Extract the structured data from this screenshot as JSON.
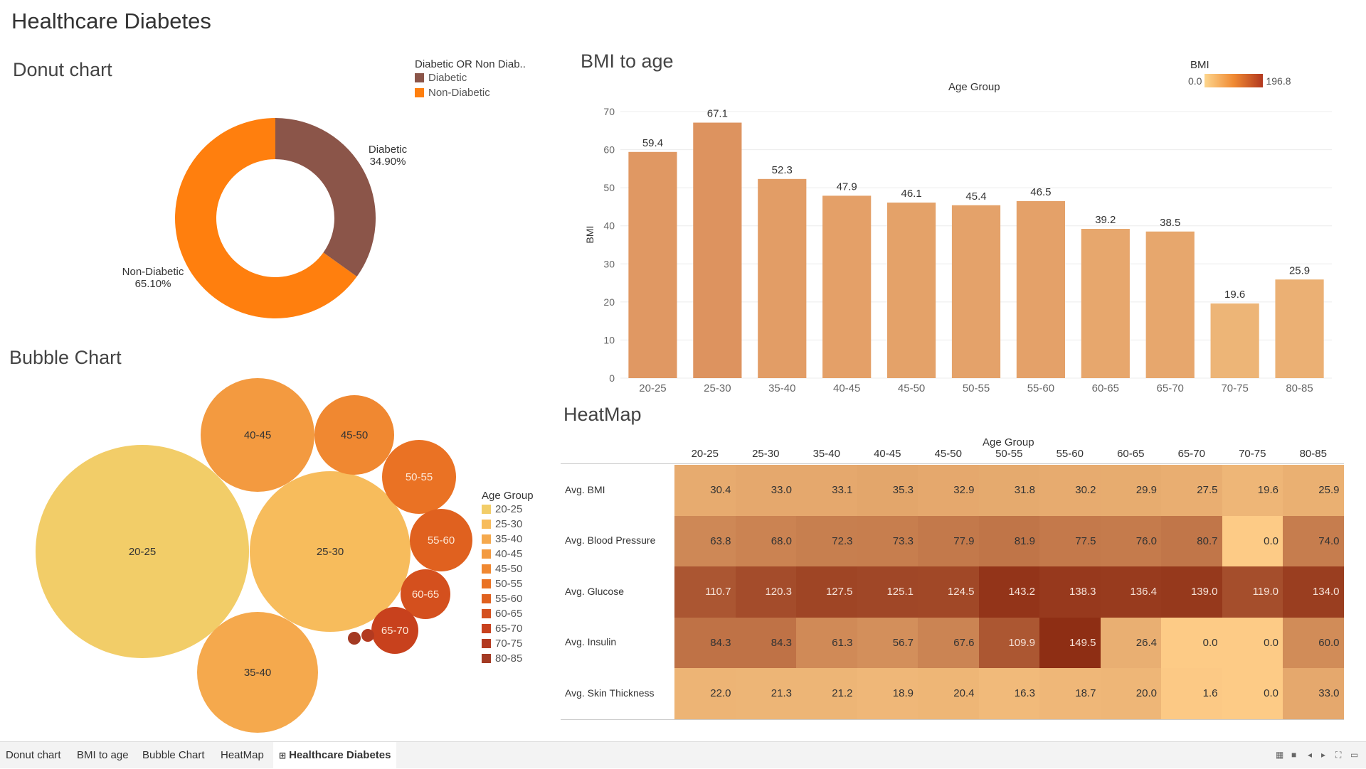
{
  "dashboard": {
    "title": "Healthcare Diabetes"
  },
  "donut": {
    "title": "Donut chart",
    "legend_title": "Diabetic OR Non Diab..",
    "labels": {
      "diabetic_name": "Diabetic",
      "diabetic_pct": "34.90%",
      "non_name": "Non-Diabetic",
      "non_pct": "65.10%"
    }
  },
  "bmi": {
    "title": "BMI to age",
    "column_header": "Age Group",
    "legend_title": "BMI",
    "legend_min": "0.0",
    "legend_max": "196.8"
  },
  "bubble": {
    "title": "Bubble Chart",
    "legend_title": "Age Group"
  },
  "heatmap": {
    "title": "HeatMap",
    "column_header": "Age Group"
  },
  "chart_data": [
    {
      "type": "pie",
      "variant": "donut",
      "categories": [
        "Diabetic",
        "Non-Diabetic"
      ],
      "values": [
        34.9,
        65.1
      ],
      "colors": [
        "#8b5549",
        "#ff7f0e"
      ]
    },
    {
      "type": "bar",
      "categories": [
        "20-25",
        "25-30",
        "35-40",
        "40-45",
        "45-50",
        "50-55",
        "55-60",
        "60-65",
        "65-70",
        "70-75",
        "80-85"
      ],
      "values": [
        59.4,
        67.1,
        52.3,
        47.9,
        46.1,
        45.4,
        46.5,
        39.2,
        38.5,
        19.6,
        25.9
      ],
      "data_labels": [
        "59.4",
        "67.1",
        "52.3",
        "47.9",
        "46.1",
        "45.4",
        "46.5",
        "39.2",
        "38.5",
        "19.6",
        "25.9"
      ],
      "ylabel": "BMI",
      "ylim": [
        0,
        70
      ],
      "yticks": [
        0,
        10,
        20,
        30,
        40,
        50,
        60,
        70
      ],
      "grid": true,
      "color_scale": {
        "min": 0.0,
        "max": 196.8,
        "from": "#fdd68e",
        "to": "#b2381f"
      }
    },
    {
      "type": "scatter",
      "variant": "packed-bubble",
      "categories": [
        "20-25",
        "25-30",
        "35-40",
        "40-45",
        "45-50",
        "50-55",
        "55-60",
        "60-65",
        "65-70",
        "70-75",
        "80-85"
      ],
      "colors": [
        "#f2cd68",
        "#f7bc5c",
        "#f5a94d",
        "#f39a40",
        "#f08831",
        "#ea7224",
        "#e0611f",
        "#d4501e",
        "#c8411d",
        "#b33a20",
        "#a33a23"
      ]
    },
    {
      "type": "heatmap",
      "columns": [
        "20-25",
        "25-30",
        "35-40",
        "40-45",
        "45-50",
        "50-55",
        "55-60",
        "60-65",
        "65-70",
        "70-75",
        "80-85"
      ],
      "rows": [
        {
          "name": "Avg. BMI",
          "values": [
            "30.4",
            "33.0",
            "33.1",
            "35.3",
            "32.9",
            "31.8",
            "30.2",
            "29.9",
            "27.5",
            "19.6",
            "25.9"
          ]
        },
        {
          "name": "Avg. Blood Pressure",
          "values": [
            "63.8",
            "68.0",
            "72.3",
            "73.3",
            "77.9",
            "81.9",
            "77.5",
            "76.0",
            "80.7",
            "0.0",
            "74.0"
          ]
        },
        {
          "name": "Avg. Glucose",
          "values": [
            "110.7",
            "120.3",
            "127.5",
            "125.1",
            "124.5",
            "143.2",
            "138.3",
            "136.4",
            "139.0",
            "119.0",
            "134.0"
          ]
        },
        {
          "name": "Avg. Insulin",
          "values": [
            "84.3",
            "84.3",
            "61.3",
            "56.7",
            "67.6",
            "109.9",
            "149.5",
            "26.4",
            "0.0",
            "0.0",
            "60.0"
          ]
        },
        {
          "name": "Avg. Skin Thickness",
          "values": [
            "22.0",
            "21.3",
            "21.2",
            "18.9",
            "20.4",
            "16.3",
            "18.7",
            "20.0",
            "1.6",
            "0.0",
            "33.0"
          ]
        }
      ],
      "color_scale": {
        "min": 0,
        "max": 150,
        "from": "#fdcb86",
        "to": "#8e2d14"
      }
    }
  ],
  "tabs": [
    {
      "label": "Donut chart",
      "active": false
    },
    {
      "label": "BMI to age",
      "active": false
    },
    {
      "label": "Bubble Chart",
      "active": false
    },
    {
      "label": "HeatMap",
      "active": false
    },
    {
      "label": "Healthcare Diabetes",
      "active": true
    }
  ],
  "icons": {
    "dashboard_tab": "grid-icon"
  }
}
